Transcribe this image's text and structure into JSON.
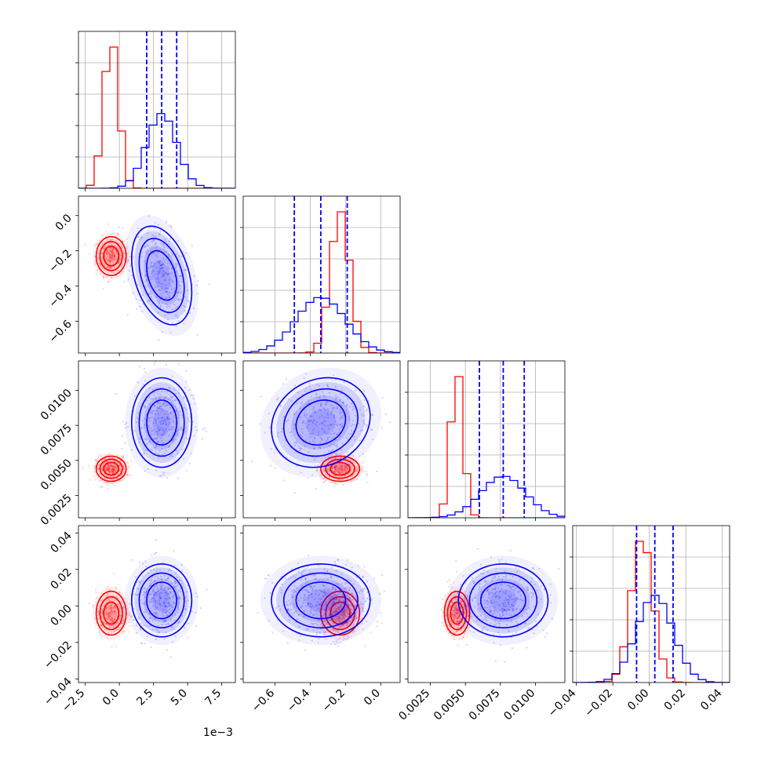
{
  "chart_data": {
    "type": "corner",
    "scale_note": "1e−3",
    "parameters": [
      {
        "index": 0,
        "range": [
          -3.0,
          8.5
        ],
        "ticks": [
          -2.5,
          0.0,
          2.5,
          5.0,
          7.5
        ],
        "tick_labels": [
          "−2.5",
          "0.0",
          "2.5",
          "5.0",
          "7.5"
        ]
      },
      {
        "index": 1,
        "range": [
          -0.78,
          0.11
        ],
        "ticks": [
          -0.6,
          -0.4,
          -0.2,
          0.0
        ],
        "tick_labels": [
          "−0.6",
          "−0.4",
          "−0.2",
          "0.0"
        ]
      },
      {
        "index": 2,
        "range": [
          0.0009,
          0.0121
        ],
        "ticks": [
          0.0025,
          0.005,
          0.0075,
          0.01
        ],
        "tick_labels": [
          "0.0025",
          "0.0050",
          "0.0075",
          "0.0100"
        ]
      },
      {
        "index": 3,
        "range": [
          -0.042,
          0.044
        ],
        "ticks": [
          -0.04,
          -0.02,
          0.0,
          0.02,
          0.04
        ],
        "tick_labels": [
          "−0.04",
          "−0.02",
          "0.00",
          "0.02",
          "0.04"
        ]
      }
    ],
    "series": [
      {
        "key": "red",
        "color": "#ff0000",
        "mean": [
          -0.6,
          -0.23,
          0.0044,
          -0.004
        ],
        "std": [
          0.55,
          0.055,
          0.00045,
          0.006
        ],
        "corr": {
          "0-1": 0.0,
          "0-2": 0.0,
          "0-3": 0.0,
          "1-2": 0.0,
          "1-3": 0.0,
          "2-3": 0.0
        }
      },
      {
        "key": "blue",
        "color": "#0000ff",
        "mean": [
          3.1,
          -0.34,
          0.0077,
          0.003
        ],
        "std": [
          1.1,
          0.14,
          0.0016,
          0.01
        ],
        "corr": {
          "0-1": -0.35,
          "0-2": 0.0,
          "0-3": 0.0,
          "1-2": 0.15,
          "1-3": 0.0,
          "2-3": 0.0
        }
      }
    ],
    "quantile_lines": {
      "color": "#0000ff",
      "values": [
        [
          2.0,
          3.1,
          4.2
        ],
        [
          -0.49,
          -0.34,
          -0.19
        ],
        [
          0.006,
          0.0077,
          0.0092
        ],
        [
          -0.007,
          0.003,
          0.013
        ]
      ]
    },
    "grid": true,
    "legend": "none"
  }
}
